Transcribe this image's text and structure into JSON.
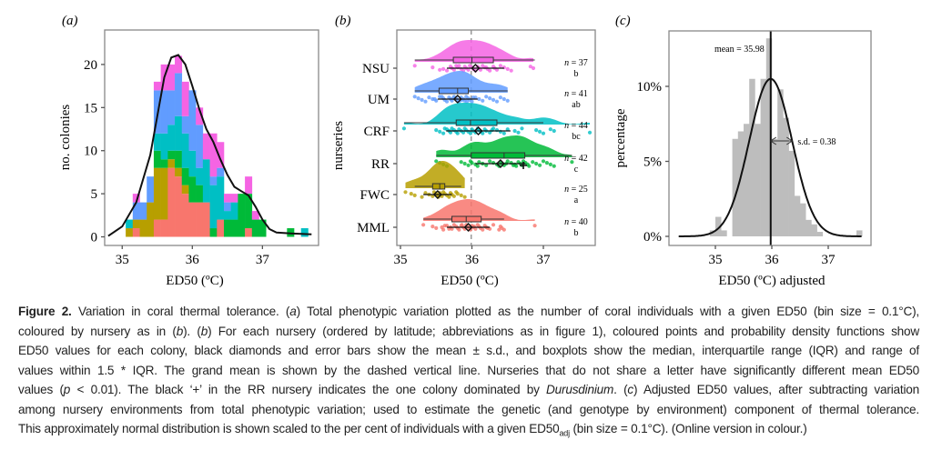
{
  "figure_label": "Figure 2.",
  "caption": {
    "lines": [
      [
        {
          "t": "Variation in coral thermal tolerance. ("
        },
        {
          "t": "a",
          "i": true
        },
        {
          "t": ") Total phenotypic variation plotted as the number of coral individuals with a given ED50 (bin size = 0.1°C),"
        }
      ],
      [
        {
          "t": "coloured by nursery as in ("
        },
        {
          "t": "b",
          "i": true
        },
        {
          "t": "). ("
        },
        {
          "t": "b",
          "i": true
        },
        {
          "t": ") For each nursery (ordered by latitude; abbreviations as in figure 1), coloured points and probability density functions show"
        }
      ],
      [
        {
          "t": "ED50 values for each colony, black diamonds and error bars show the mean ± s.d., and boxplots show the median, interquartile range (IQR) and range of"
        }
      ],
      [
        {
          "t": "values within 1.5 * IQR. The grand mean is shown by the dashed vertical line. Nurseries that do not share a letter have significantly different mean ED50"
        }
      ],
      [
        {
          "t": "values ("
        },
        {
          "t": "p",
          "i": true
        },
        {
          "t": " < 0.01). The black ‘+’ in the RR nursery indicates the one colony dominated by "
        },
        {
          "t": "Durusdinium",
          "i": true
        },
        {
          "t": ". ("
        },
        {
          "t": "c",
          "i": true
        },
        {
          "t": ") Adjusted ED50 values, after subtracting variation"
        }
      ],
      [
        {
          "t": "among nursery environments from total phenotypic variation; used to estimate the genetic (and genotype by environment) component of thermal tolerance."
        }
      ],
      [
        {
          "t": "This approximately normal distribution is shown scaled to the per cent of individuals with a given ED50"
        },
        {
          "t": "adj",
          "sub": true
        },
        {
          "t": " (bin size = 0.1°C). (Online version in colour.)"
        }
      ]
    ]
  },
  "chart_data": [
    {
      "panel": "(a)",
      "type": "bar",
      "stacked": true,
      "xlabel": "ED50 (ºC)",
      "ylabel": "no. colonies",
      "xlim": [
        34.75,
        37.8
      ],
      "ylim": [
        -1,
        24
      ],
      "xticks": [
        35,
        36,
        37
      ],
      "yticks": [
        0,
        5,
        10,
        15,
        20
      ],
      "bin_size": 0.1,
      "bins": [
        35.1,
        35.2,
        35.3,
        35.4,
        35.5,
        35.6,
        35.7,
        35.8,
        35.9,
        36.0,
        36.1,
        36.2,
        36.3,
        36.4,
        36.5,
        36.6,
        36.7,
        36.8,
        36.9,
        37.0,
        37.1,
        37.2,
        37.3,
        37.4,
        37.5,
        37.6
      ],
      "series": [
        {
          "name": "MML",
          "color": "#F8766D",
          "values": [
            0,
            1,
            0,
            0,
            2,
            2,
            8,
            7,
            5,
            4,
            4,
            4,
            0,
            2,
            0,
            0,
            0,
            1,
            0,
            0,
            0,
            0,
            0,
            0,
            0,
            0
          ]
        },
        {
          "name": "FWC",
          "color": "#B79F00",
          "values": [
            1,
            1,
            2,
            4,
            6,
            6,
            1,
            1,
            1,
            0,
            0,
            0,
            0,
            0,
            0,
            0,
            0,
            0,
            0,
            0,
            0,
            0,
            0,
            0,
            0,
            0
          ]
        },
        {
          "name": "RR",
          "color": "#00BA38",
          "values": [
            0,
            0,
            0,
            0,
            2,
            1,
            1,
            2,
            2,
            3,
            2,
            0,
            1,
            0,
            2,
            2,
            5,
            4,
            2,
            2,
            0,
            0,
            0,
            1,
            0,
            0
          ]
        },
        {
          "name": "CRF",
          "color": "#00BFC4",
          "values": [
            1,
            0,
            0,
            0,
            2,
            3,
            3,
            4,
            4,
            3,
            2,
            5,
            5,
            5,
            1,
            2,
            0,
            0,
            0,
            0,
            0,
            0,
            0,
            0,
            0,
            1
          ]
        },
        {
          "name": "UM",
          "color": "#619CFF",
          "values": [
            0,
            2,
            2,
            3,
            5,
            5,
            4,
            5,
            2,
            7,
            5,
            0,
            1,
            1,
            1,
            0,
            0,
            0,
            0,
            0,
            0,
            0,
            0,
            0,
            0,
            0
          ]
        },
        {
          "name": "NSU",
          "color": "#F564E3",
          "values": [
            0,
            1,
            0,
            0,
            1,
            3,
            3,
            2,
            4,
            0,
            2,
            3,
            5,
            3,
            1,
            1,
            0,
            2,
            1,
            0,
            0,
            0,
            0,
            0,
            0,
            0
          ]
        }
      ],
      "density_curve": {
        "x": [
          34.8,
          35.0,
          35.2,
          35.4,
          35.5,
          35.6,
          35.7,
          35.8,
          35.9,
          36.0,
          36.1,
          36.2,
          36.3,
          36.4,
          36.5,
          36.6,
          36.7,
          36.8,
          36.9,
          37.0,
          37.1,
          37.2,
          37.4,
          37.7
        ],
        "y": [
          0.1,
          1.2,
          4.0,
          9.5,
          14.0,
          18.5,
          20.8,
          21.1,
          20.0,
          17.5,
          14.8,
          12.5,
          11.0,
          9.0,
          7.2,
          5.8,
          5.3,
          4.8,
          3.5,
          2.0,
          0.9,
          0.5,
          0.4,
          0.3
        ]
      }
    },
    {
      "panel": "(b)",
      "type": "scatter",
      "subtype": "raincloud",
      "xlabel": "ED50 (ºC)",
      "ylabel": "nurseries",
      "xlim": [
        34.95,
        37.55
      ],
      "xticks": [
        35,
        36,
        37
      ],
      "grand_mean": 35.99,
      "categories": [
        "NSU",
        "UM",
        "CRF",
        "RR",
        "FWC",
        "MML"
      ],
      "groups": [
        {
          "name": "NSU",
          "color": "#F564E3",
          "n_label": "n = 37",
          "letter": "b",
          "mean": 36.05,
          "sd": 0.4,
          "q1": 35.74,
          "median": 36.0,
          "q3": 36.3,
          "whisker_lo": 35.2,
          "whisker_hi": 36.88,
          "points": [
            35.2,
            35.45,
            35.6,
            35.65,
            35.7,
            35.72,
            35.75,
            35.78,
            35.8,
            35.85,
            35.88,
            35.9,
            35.92,
            35.95,
            35.97,
            36.0,
            36.02,
            36.05,
            36.08,
            36.1,
            36.12,
            36.15,
            36.2,
            36.22,
            36.25,
            36.3,
            36.32,
            36.35,
            36.4,
            36.45,
            36.5,
            36.55,
            36.82,
            36.86,
            35.55,
            35.82,
            36.18
          ]
        },
        {
          "name": "UM",
          "color": "#619CFF",
          "n_label": "n = 41",
          "letter": "ab",
          "mean": 35.8,
          "sd": 0.28,
          "q1": 35.54,
          "median": 35.8,
          "q3": 35.95,
          "whisker_lo": 35.2,
          "whisker_hi": 36.5,
          "points": [
            35.2,
            35.25,
            35.3,
            35.35,
            35.4,
            35.45,
            35.5,
            35.55,
            35.6,
            35.62,
            35.65,
            35.68,
            35.7,
            35.72,
            35.75,
            35.78,
            35.8,
            35.82,
            35.85,
            35.88,
            35.9,
            35.92,
            35.95,
            35.97,
            36.0,
            36.05,
            36.1,
            36.15,
            36.2,
            36.25,
            36.3,
            36.35,
            36.4,
            36.45,
            36.5,
            35.58,
            35.74,
            35.86,
            35.93,
            36.02,
            35.48
          ]
        },
        {
          "name": "CRF",
          "color": "#00BFC4",
          "n_label": "n = 44",
          "letter": "bc",
          "mean": 36.09,
          "sd": 0.45,
          "q1": 35.78,
          "median": 35.98,
          "q3": 36.35,
          "whisker_lo": 35.05,
          "whisker_hi": 37.0,
          "points": [
            35.05,
            35.5,
            35.55,
            35.6,
            35.65,
            35.68,
            35.7,
            35.72,
            35.75,
            35.78,
            35.8,
            35.82,
            35.85,
            35.88,
            35.9,
            35.92,
            35.95,
            35.98,
            36.0,
            36.02,
            36.05,
            36.08,
            36.1,
            36.12,
            36.15,
            36.18,
            36.2,
            36.25,
            36.3,
            36.35,
            36.4,
            36.45,
            36.5,
            36.6,
            36.65,
            36.7,
            36.9,
            36.95,
            37.0,
            37.1,
            37.15,
            37.65,
            35.62,
            36.28
          ]
        },
        {
          "name": "RR",
          "color": "#00BA38",
          "n_label": "n = 42",
          "letter": "c",
          "mean": 36.4,
          "sd": 0.35,
          "q1": 35.99,
          "median": 36.45,
          "q3": 36.74,
          "whisker_lo": 35.5,
          "whisker_hi": 37.4,
          "points": [
            35.5,
            35.55,
            35.6,
            35.65,
            35.85,
            35.9,
            35.95,
            35.98,
            36.0,
            36.05,
            36.08,
            36.1,
            36.15,
            36.2,
            36.25,
            36.3,
            36.35,
            36.38,
            36.4,
            36.42,
            36.45,
            36.5,
            36.55,
            36.6,
            36.62,
            36.65,
            36.68,
            36.7,
            36.72,
            36.75,
            36.78,
            36.8,
            36.85,
            36.9,
            36.95,
            37.0,
            37.05,
            37.1,
            37.15,
            37.4,
            36.48,
            36.58
          ]
        },
        {
          "name": "FWC",
          "color": "#B79F00",
          "n_label": "n = 25",
          "letter": "a",
          "mean": 35.52,
          "sd": 0.2,
          "q1": 35.45,
          "median": 35.55,
          "q3": 35.62,
          "whisker_lo": 35.2,
          "whisker_hi": 35.85,
          "points": [
            35.07,
            35.15,
            35.2,
            35.3,
            35.35,
            35.4,
            35.45,
            35.47,
            35.5,
            35.52,
            35.53,
            35.55,
            35.56,
            35.58,
            35.6,
            35.62,
            35.65,
            35.68,
            35.7,
            35.72,
            35.75,
            35.78,
            35.8,
            35.85,
            35.9
          ]
        },
        {
          "name": "MML",
          "color": "#F8766D",
          "n_label": "n = 40",
          "letter": "b",
          "mean": 35.95,
          "sd": 0.3,
          "q1": 35.72,
          "median": 35.92,
          "q3": 36.13,
          "whisker_lo": 35.32,
          "whisker_hi": 36.45,
          "points": [
            35.32,
            35.45,
            35.5,
            35.6,
            35.65,
            35.7,
            35.72,
            35.75,
            35.78,
            35.8,
            35.82,
            35.85,
            35.88,
            35.9,
            35.92,
            35.94,
            35.96,
            35.98,
            36.0,
            36.02,
            36.05,
            36.08,
            36.1,
            36.12,
            36.15,
            36.18,
            36.2,
            36.25,
            36.3,
            36.4,
            36.42,
            36.45,
            36.88,
            35.58,
            35.68,
            35.86,
            36.03,
            36.22,
            36.38,
            35.62
          ]
        }
      ],
      "rr_durusdinium_plus": 36.72
    },
    {
      "panel": "(c)",
      "type": "bar",
      "xlabel": "ED50 (ºC) adjusted",
      "ylabel": "percentage",
      "xlim": [
        34.2,
        37.7
      ],
      "ylim": [
        -0.6,
        13.8
      ],
      "xticks": [
        35,
        36,
        37
      ],
      "yticks": [
        0,
        5,
        10
      ],
      "ytick_labels": [
        "0%",
        "5%",
        "10%"
      ],
      "bin_size": 0.1,
      "bins": [
        34.95,
        35.05,
        35.15,
        35.25,
        35.35,
        35.45,
        35.55,
        35.65,
        35.75,
        35.85,
        35.95,
        36.05,
        36.15,
        36.25,
        36.35,
        36.45,
        36.55,
        36.65,
        36.75,
        36.85,
        36.95,
        37.05,
        37.15,
        37.25,
        37.35,
        37.45,
        37.55
      ],
      "values": [
        0.4,
        1.3,
        0.4,
        0,
        6.5,
        7.0,
        7.5,
        10.5,
        7.5,
        10.5,
        13.2,
        6.5,
        9.8,
        7.9,
        5.7,
        2.7,
        2.2,
        1.1,
        0.8,
        0.3,
        0,
        0,
        0,
        0,
        0,
        0,
        0.4
      ],
      "normal_fit": {
        "mean": 35.98,
        "sd": 0.38,
        "peak_percent": 10.5
      },
      "annotations": {
        "mean_label": "mean = 35.98",
        "sd_label": "s.d. = 0.38"
      }
    }
  ]
}
